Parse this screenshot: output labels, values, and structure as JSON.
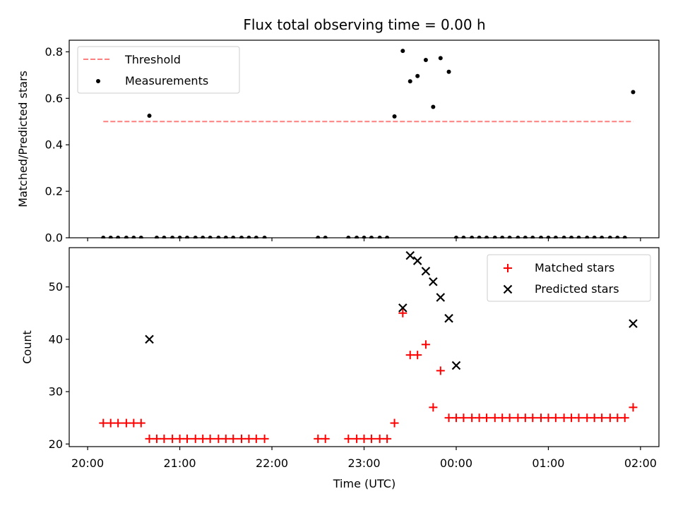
{
  "chart_data": {
    "type": "scatter",
    "title": "Flux total observing time = 0.00 h",
    "xlabel": "Time (UTC)",
    "x_unit": "hours (UTC, continuing past midnight)",
    "xlim": [
      19.8,
      26.2
    ],
    "x_ticks": [
      {
        "v": 20,
        "label": "20:00"
      },
      {
        "v": 21,
        "label": "21:00"
      },
      {
        "v": 22,
        "label": "22:00"
      },
      {
        "v": 23,
        "label": "23:00"
      },
      {
        "v": 24,
        "label": "00:00"
      },
      {
        "v": 25,
        "label": "01:00"
      },
      {
        "v": 26,
        "label": "02:00"
      }
    ],
    "x": [
      20.17,
      20.25,
      20.33,
      20.42,
      20.5,
      20.58,
      20.67,
      20.75,
      20.83,
      20.92,
      21.0,
      21.08,
      21.17,
      21.25,
      21.33,
      21.42,
      21.5,
      21.58,
      21.67,
      21.75,
      21.83,
      21.92,
      22.5,
      22.58,
      22.83,
      22.92,
      23.0,
      23.08,
      23.17,
      23.25,
      23.33,
      23.42,
      23.5,
      23.58,
      23.67,
      23.75,
      23.83,
      23.92,
      24.0,
      24.08,
      24.17,
      24.25,
      24.33,
      24.42,
      24.5,
      24.58,
      24.67,
      24.75,
      24.83,
      24.92,
      25.0,
      25.08,
      25.17,
      25.25,
      25.33,
      25.42,
      25.5,
      25.58,
      25.67,
      25.75,
      25.83,
      25.92
    ],
    "panels": [
      {
        "ylabel": "Matched/Predicted stars",
        "ylim": [
          0,
          0.85
        ],
        "y_ticks": [
          {
            "v": 0,
            "label": "0.0"
          },
          {
            "v": 0.2,
            "label": "0.2"
          },
          {
            "v": 0.4,
            "label": "0.4"
          },
          {
            "v": 0.6,
            "label": "0.6"
          },
          {
            "v": 0.8,
            "label": "0.8"
          }
        ],
        "legend": [
          "Threshold",
          "Measurements"
        ],
        "threshold": {
          "name": "Threshold",
          "value": 0.5,
          "x_range": [
            20.17,
            25.92
          ],
          "color": "#ff7f7f"
        },
        "series": [
          {
            "name": "Measurements",
            "marker": "dot",
            "color": "#000000",
            "values": [
              0,
              0,
              0,
              0,
              0,
              0,
              0.525,
              0,
              0,
              0,
              0,
              0,
              0,
              0,
              0,
              0,
              0,
              0,
              0,
              0,
              0,
              0,
              0,
              0,
              0,
              0,
              0,
              0,
              0,
              0,
              0.522,
              0.804,
              0.673,
              0.696,
              0.765,
              0.563,
              0.773,
              0.714,
              0,
              0,
              0,
              0,
              0,
              0,
              0,
              0,
              0,
              0,
              0,
              0,
              0,
              0,
              0,
              0,
              0,
              0,
              0,
              0,
              0,
              0,
              0,
              0.627
            ]
          }
        ]
      },
      {
        "ylabel": "Count",
        "ylim": [
          19.5,
          57.5
        ],
        "y_ticks": [
          {
            "v": 20,
            "label": "20"
          },
          {
            "v": 30,
            "label": "30"
          },
          {
            "v": 40,
            "label": "40"
          },
          {
            "v": 50,
            "label": "50"
          }
        ],
        "legend": [
          "Matched stars",
          "Predicted stars"
        ],
        "series": [
          {
            "name": "Matched stars",
            "marker": "plus",
            "color": "#ff0000",
            "values": [
              24,
              24,
              24,
              24,
              24,
              24,
              21,
              21,
              21,
              21,
              21,
              21,
              21,
              21,
              21,
              21,
              21,
              21,
              21,
              21,
              21,
              21,
              21,
              21,
              21,
              21,
              21,
              21,
              21,
              21,
              24,
              45,
              37,
              37,
              39,
              27,
              34,
              25,
              25,
              25,
              25,
              25,
              25,
              25,
              25,
              25,
              25,
              25,
              25,
              25,
              25,
              25,
              25,
              25,
              25,
              25,
              25,
              25,
              25,
              25,
              25,
              27
            ]
          },
          {
            "name": "Predicted stars",
            "marker": "x",
            "color": "#000000",
            "x": [
              20.67,
              23.42,
              23.5,
              23.58,
              23.67,
              23.75,
              23.83,
              23.92,
              24.0,
              25.92
            ],
            "values": [
              40,
              46,
              56,
              55,
              53,
              51,
              48,
              44,
              35,
              43
            ]
          }
        ]
      }
    ]
  }
}
